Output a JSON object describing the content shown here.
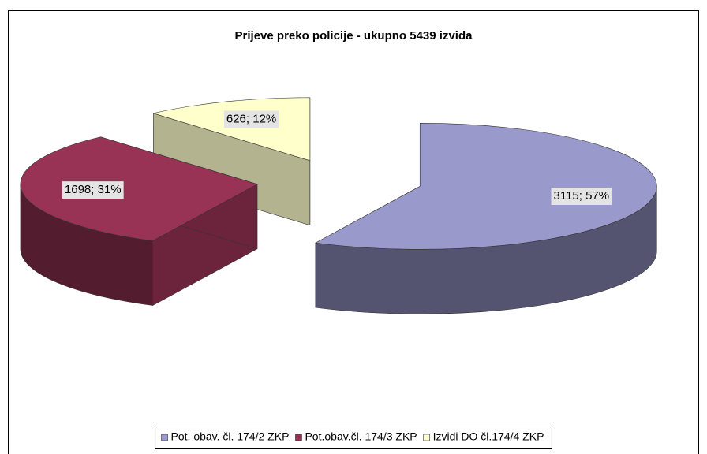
{
  "chart_data": {
    "type": "pie",
    "title": "Prijeve preko policije - ukupno 5439 izvida",
    "categories": [
      "Pot. obav. čl. 174/2 ZKP",
      "Pot.obav.čl. 174/3 ZKP",
      "Izvidi DO čl.174/4 ZKP"
    ],
    "values": [
      3115,
      1698,
      626
    ],
    "value_labels": [
      "3115; 57%",
      "1698; 31%",
      "626; 12%"
    ],
    "colors": [
      "#9999cc",
      "#993355",
      "#ffffcc"
    ],
    "legend": "bottom"
  }
}
